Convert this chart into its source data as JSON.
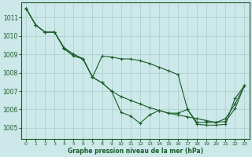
{
  "background_color": "#cce8e8",
  "grid_color": "#aacece",
  "line_color": "#1a5c2a",
  "xlim": [
    -0.5,
    23.5
  ],
  "ylim": [
    1004.4,
    1011.8
  ],
  "yticks": [
    1005,
    1006,
    1007,
    1008,
    1009,
    1010,
    1011
  ],
  "xticks": [
    0,
    1,
    2,
    3,
    4,
    5,
    6,
    7,
    8,
    9,
    10,
    11,
    12,
    13,
    14,
    15,
    16,
    17,
    18,
    19,
    20,
    21,
    22,
    23
  ],
  "xlabel": "Graphe pression niveau de la mer (hPa)",
  "series1": [
    1011.5,
    1010.6,
    1010.2,
    1010.2,
    1009.3,
    1008.9,
    1008.75,
    1007.75,
    1007.45,
    1007.0,
    1005.85,
    1005.65,
    1005.25,
    1005.7,
    1005.95,
    1005.8,
    1005.8,
    1006.0,
    1005.3,
    1005.3,
    1005.3,
    1005.35,
    1006.05,
    1007.3
  ],
  "series2": [
    1011.5,
    1010.6,
    1010.2,
    1010.2,
    1009.35,
    1009.0,
    1008.75,
    1007.75,
    1008.9,
    1008.85,
    1008.75,
    1008.75,
    1008.65,
    1008.5,
    1008.3,
    1008.1,
    1007.9,
    1006.0,
    1005.2,
    1005.15,
    1005.15,
    1005.2,
    1006.6,
    1007.3
  ],
  "series3": [
    1011.5,
    1010.6,
    1010.2,
    1010.2,
    1009.35,
    1009.0,
    1008.75,
    1007.75,
    1007.45,
    1007.0,
    1006.7,
    1006.5,
    1006.3,
    1006.1,
    1005.95,
    1005.8,
    1005.7,
    1005.6,
    1005.5,
    1005.4,
    1005.3,
    1005.5,
    1006.3,
    1007.3
  ]
}
